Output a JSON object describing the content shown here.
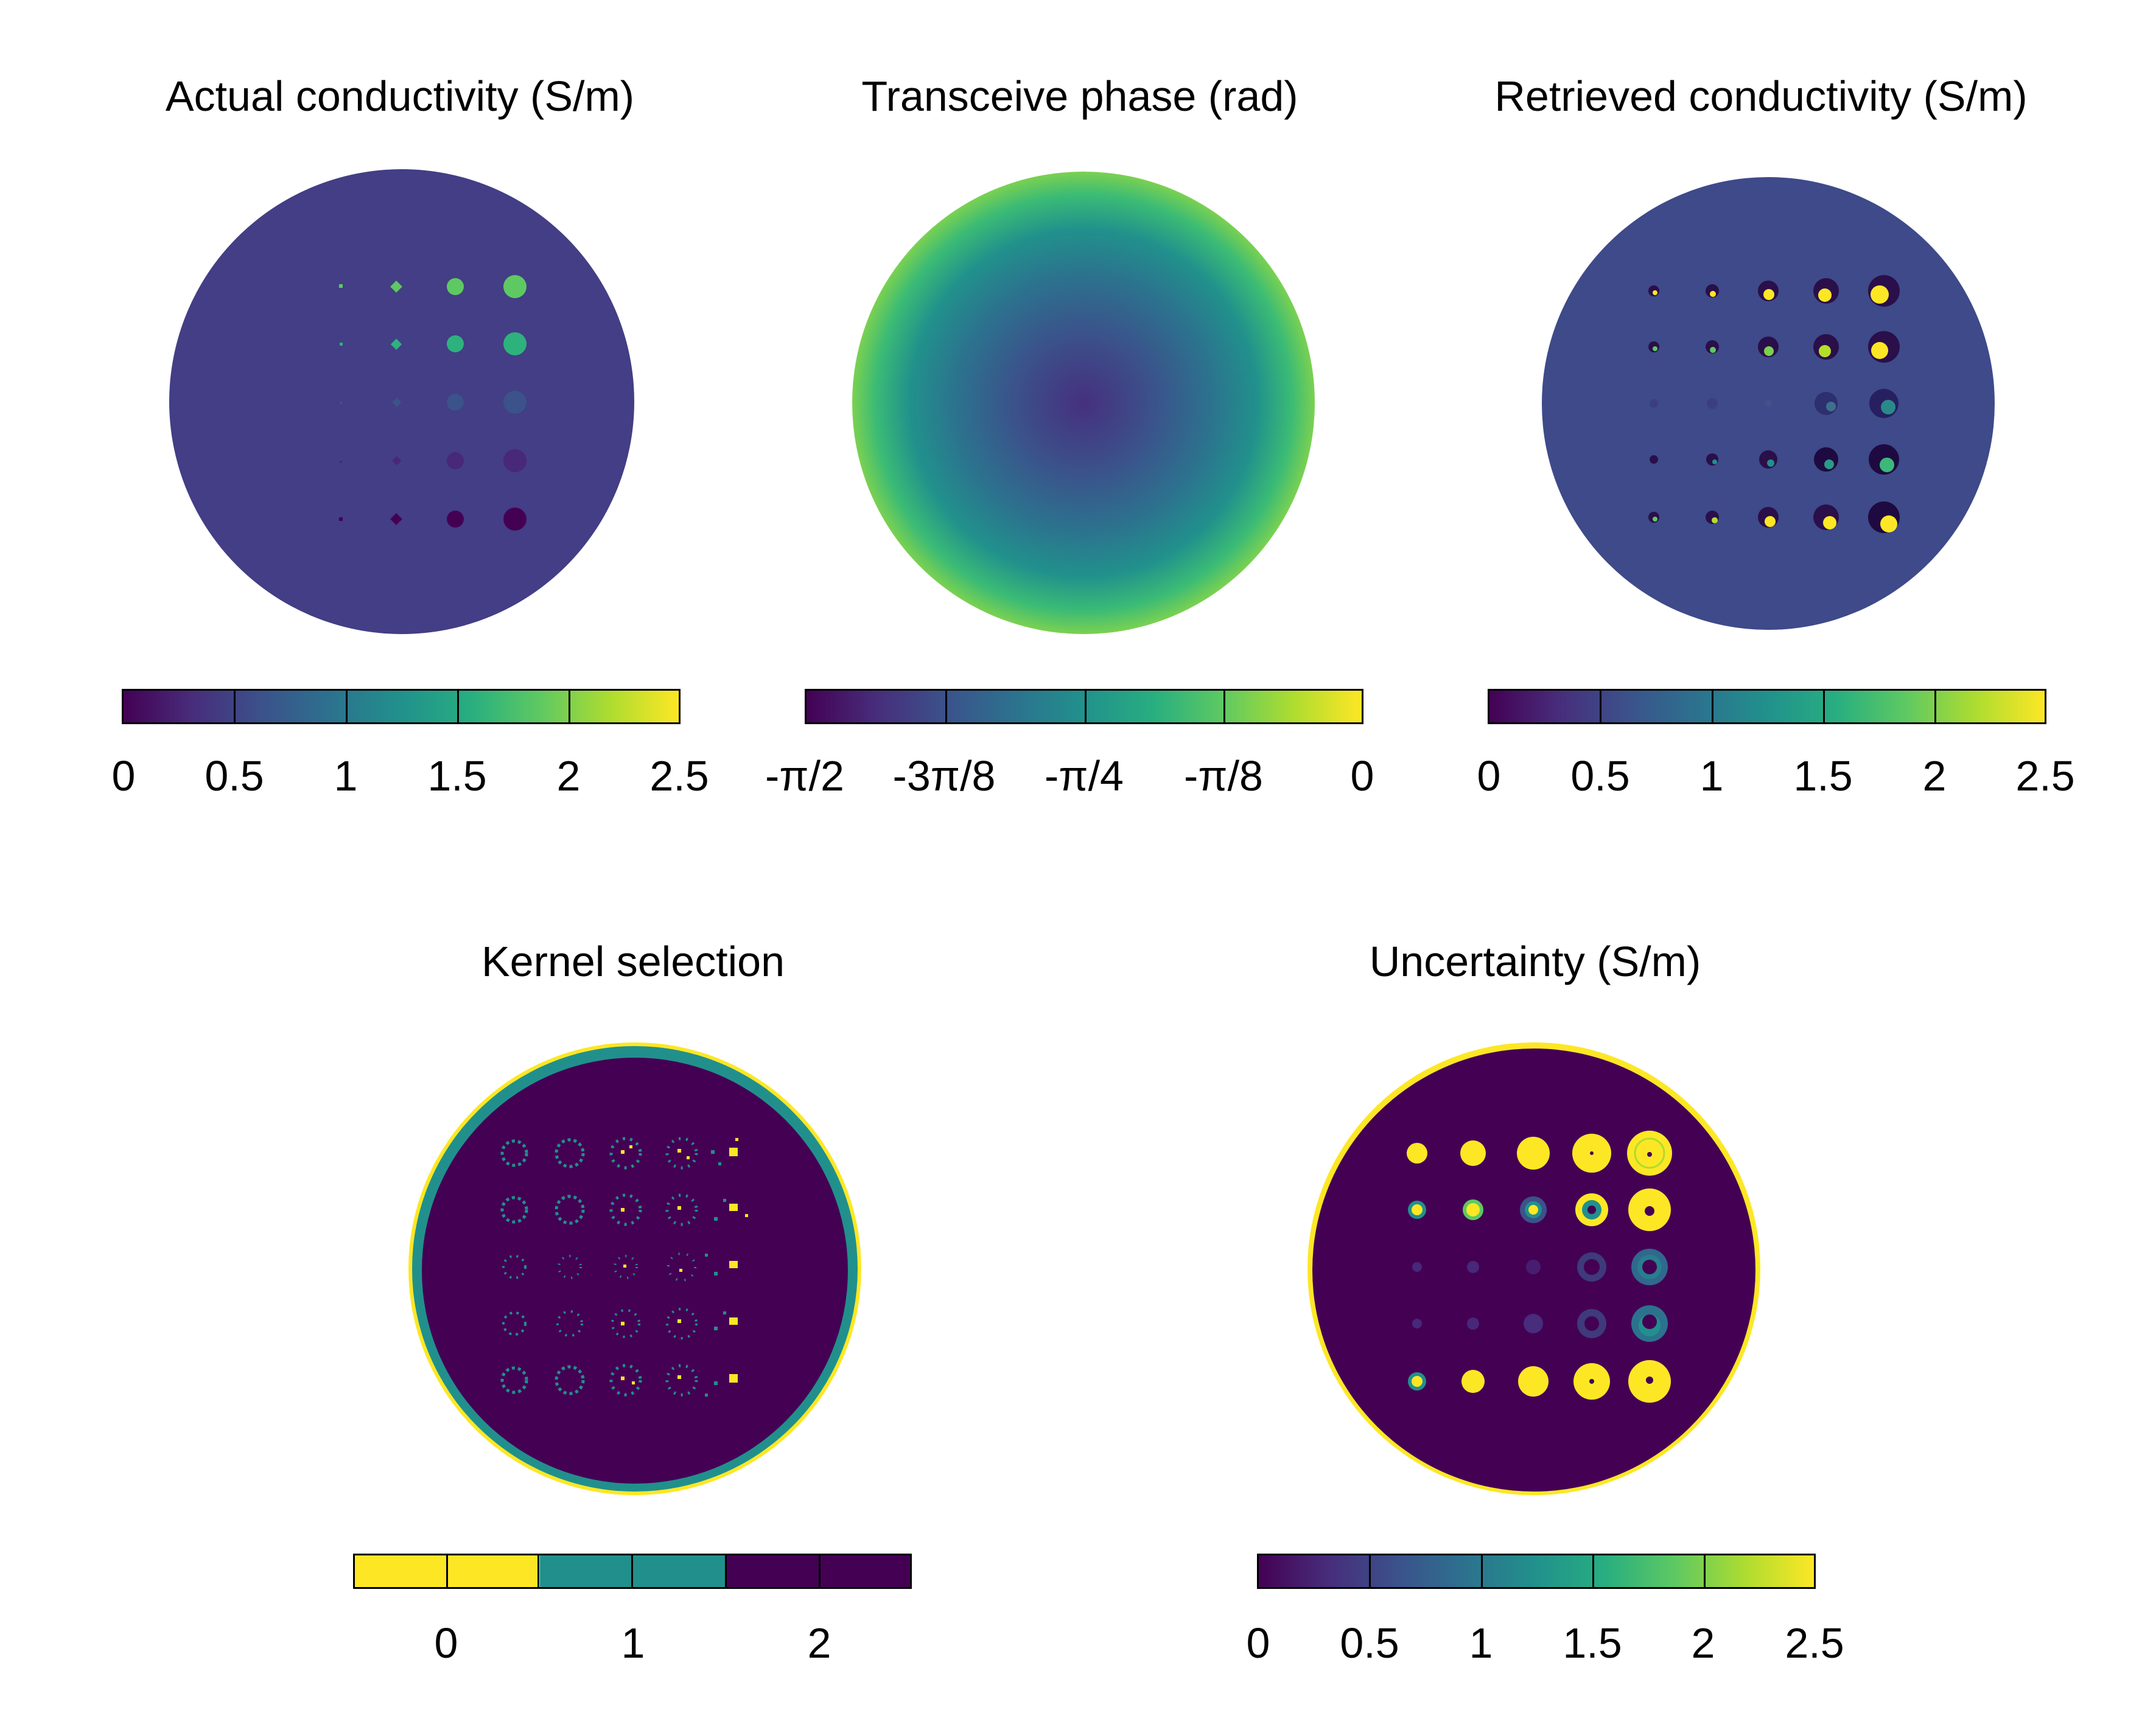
{
  "panels": {
    "actual": {
      "title": "Actual conductivity (S/m)"
    },
    "phase": {
      "title": "Transceive phase (rad)"
    },
    "retrieved": {
      "title": "Retrieved conductivity (S/m)"
    },
    "kernel": {
      "title": "Kernel selection"
    },
    "uncertainty": {
      "title": "Uncertainty (S/m)"
    }
  },
  "colorbars": {
    "conductivity_ticks": [
      "0",
      "0.5",
      "1",
      "1.5",
      "2",
      "2.5"
    ],
    "phase_ticks": [
      "-π/2",
      "-3π/8",
      "-π/4",
      "-π/8",
      "0"
    ],
    "kernel_ticks": [
      "0",
      "1",
      "2"
    ],
    "uncertainty_ticks": [
      "0",
      "0.5",
      "1",
      "1.5",
      "2",
      "2.5"
    ]
  },
  "colors": {
    "viridis_dark": "#440154",
    "viridis_blue": "#3b528b",
    "viridis_teal": "#21908c",
    "viridis_green": "#5ec962",
    "viridis_yellow": "#fde725",
    "background_conductivity": "#433e85"
  }
}
